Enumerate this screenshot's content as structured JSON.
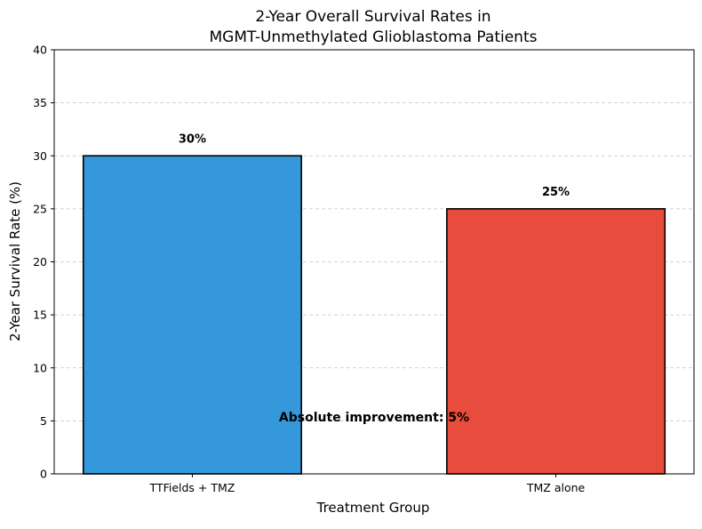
{
  "chart_data": {
    "type": "bar",
    "title_lines": [
      "2-Year Overall Survival Rates in",
      "MGMT-Unmethylated Glioblastoma Patients"
    ],
    "xlabel": "Treatment Group",
    "ylabel": "2-Year Survival Rate (%)",
    "categories": [
      "TTFields + TMZ",
      "TMZ alone"
    ],
    "values": [
      30,
      25
    ],
    "value_labels": [
      "30%",
      "25%"
    ],
    "colors": [
      "#3498db",
      "#e74c3c"
    ],
    "ylim": [
      0,
      40
    ],
    "yticks": [
      0,
      5,
      10,
      15,
      20,
      25,
      30,
      35,
      40
    ],
    "ytick_labels": [
      "0",
      "5",
      "10",
      "15",
      "20",
      "25",
      "30",
      "35",
      "40"
    ],
    "grid": "y-dashed",
    "annotation": {
      "text": "Absolute improvement: 5%",
      "y": 5
    }
  }
}
